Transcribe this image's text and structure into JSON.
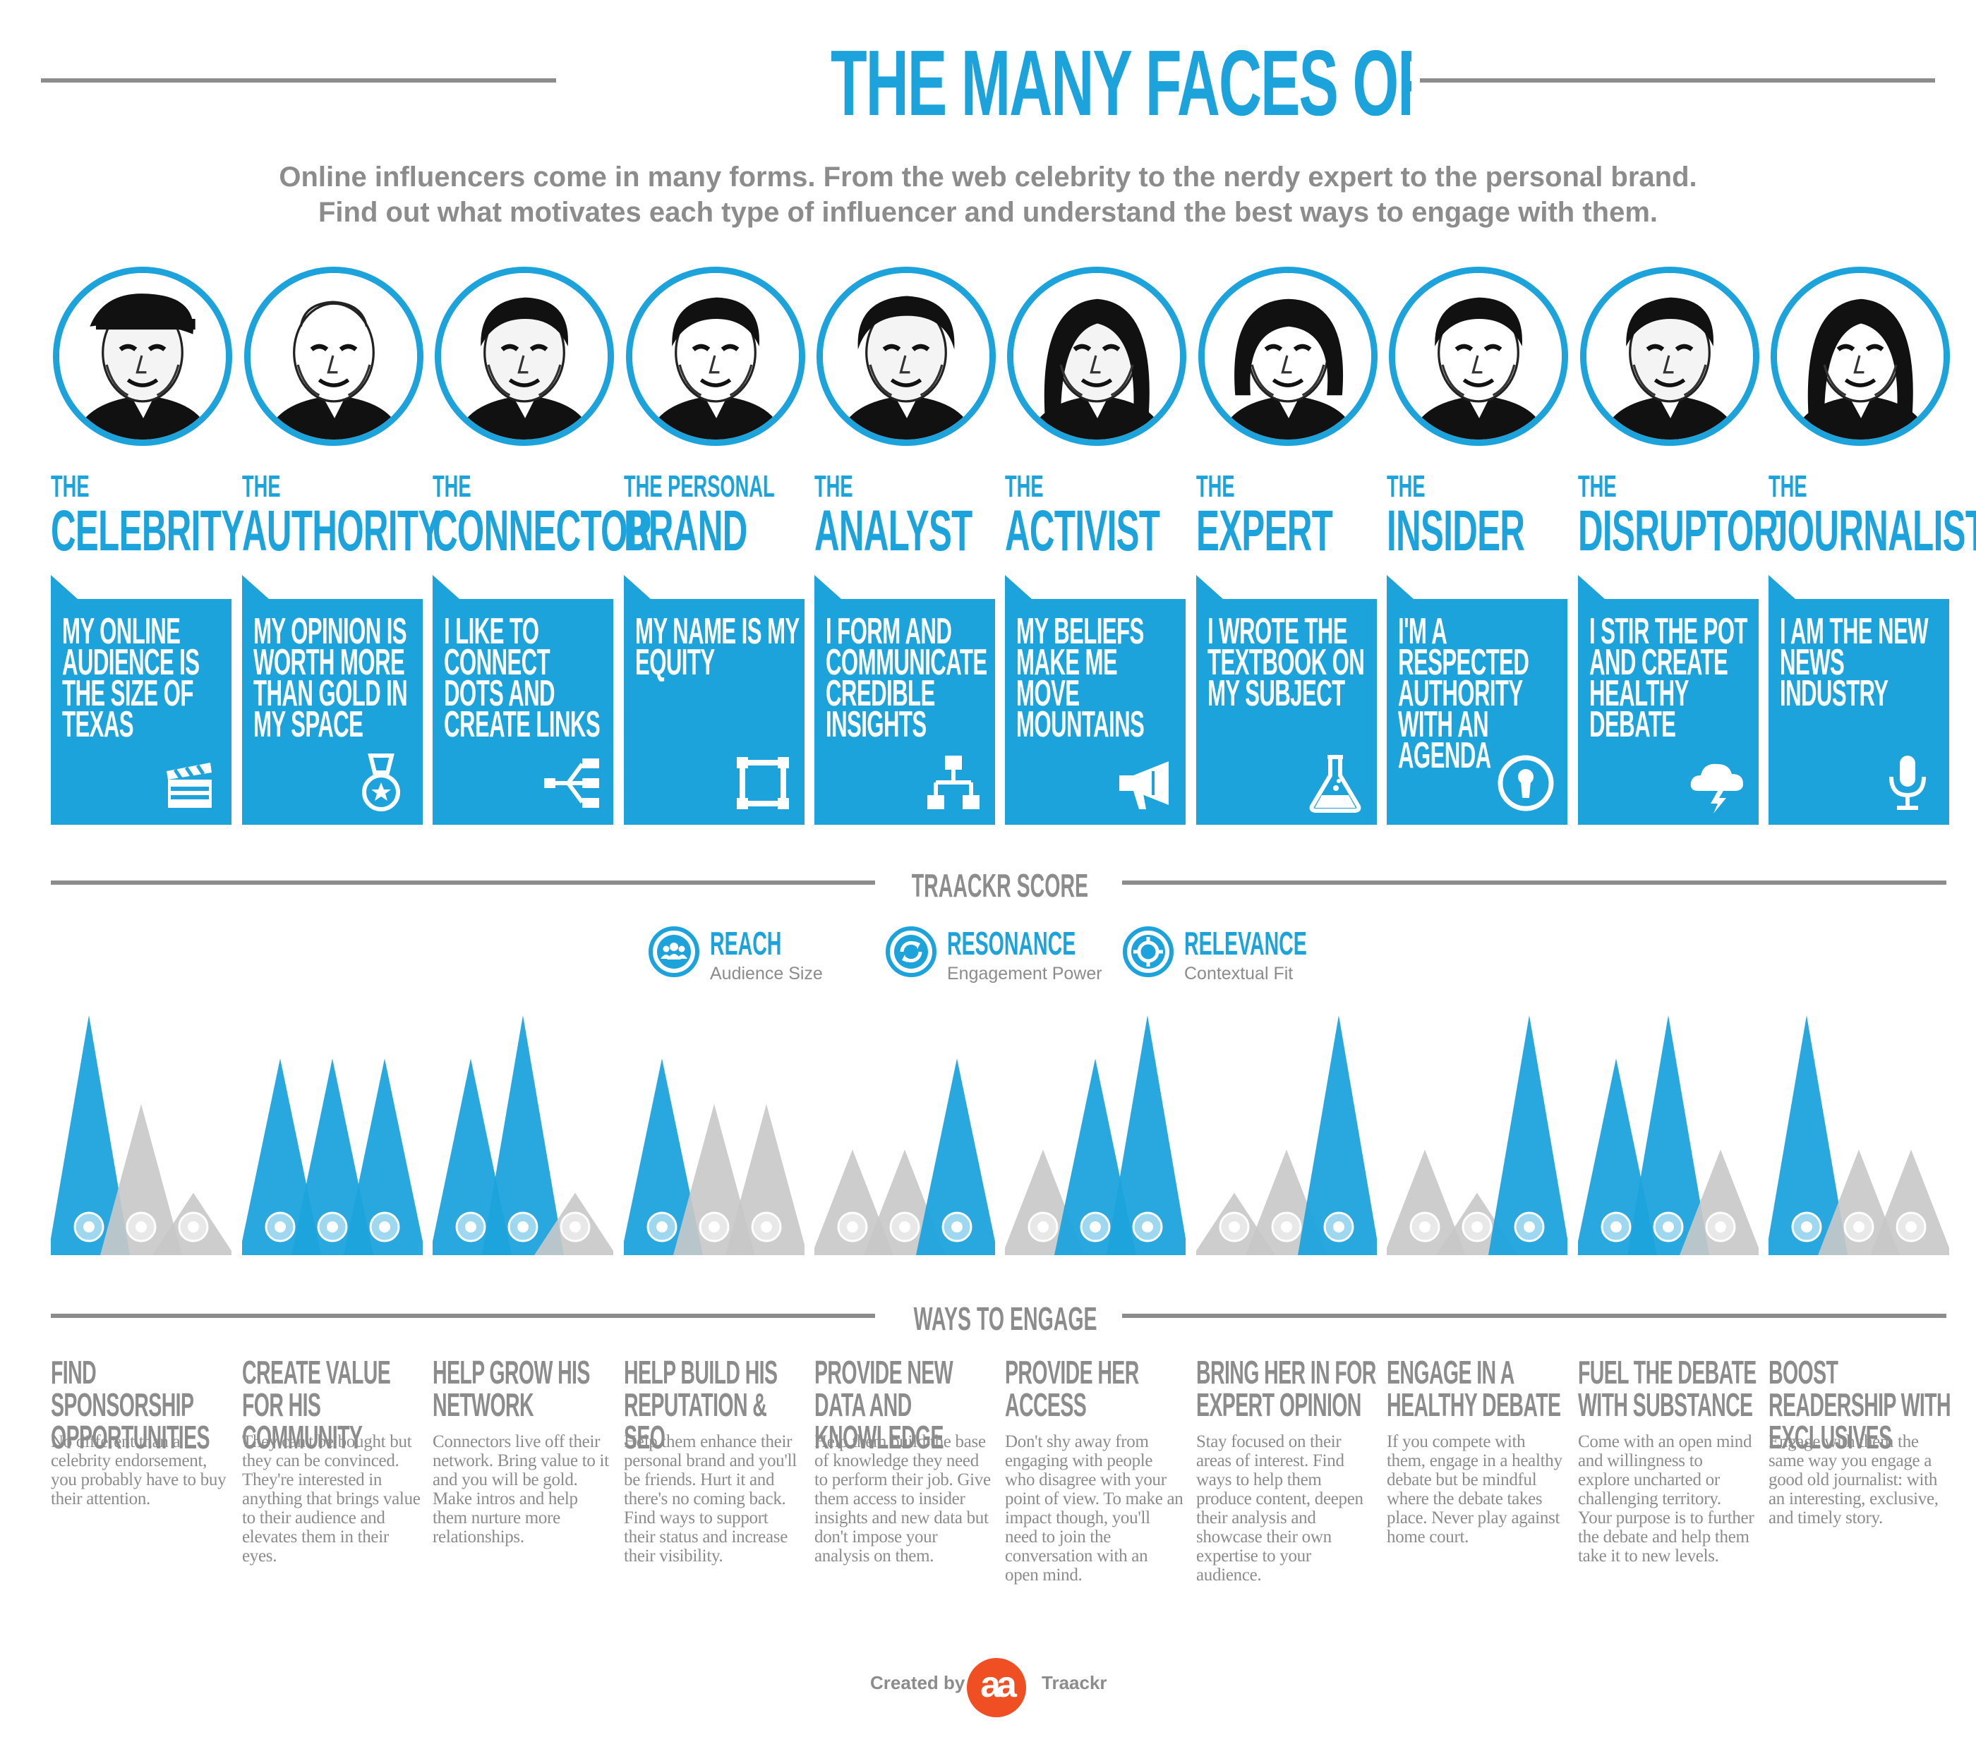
{
  "header": {
    "title": "THE MANY FACES OF INFLUENCE",
    "subtitle_line1": "Online influencers come in many forms. From the web celebrity to the nerdy expert to the personal brand.",
    "subtitle_line2": "Find out what motivates each type of influencer and understand the best ways to engage with them."
  },
  "sections": {
    "score": "TRAACKR SCORE",
    "engage": "WAYS TO ENGAGE"
  },
  "legend": [
    {
      "title": "REACH",
      "sub": "Audience Size",
      "icon": "audience-icon"
    },
    {
      "title": "RESONANCE",
      "sub": "Engagement Power",
      "icon": "cycle-arrows-icon"
    },
    {
      "title": "RELEVANCE",
      "sub": "Contextual Fit",
      "icon": "target-icon"
    }
  ],
  "colors": {
    "blue": "#1ca3dc",
    "grey": "#c8c8c8",
    "text_grey": "#8c8c8c",
    "logo": "#f04e23"
  },
  "influencers": [
    {
      "the": "THE",
      "name": "CELEBRITY",
      "quote": "MY ONLINE AUDIENCE IS THE SIZE OF TEXAS",
      "icon": "clapperboard-icon",
      "score": {
        "reach": 1.0,
        "resonance": 0.63,
        "relevance": 0.26
      },
      "engage_title": "FIND SPONSORSHIP OPPORTUNITIES",
      "engage_body": "No different than a celebrity endorsement, you probably have to buy their attention."
    },
    {
      "the": "THE",
      "name": "AUTHORITY",
      "quote": "MY OPINION IS WORTH MORE THAN GOLD IN MY SPACE",
      "icon": "medal-icon",
      "score": {
        "reach": 0.82,
        "resonance": 0.82,
        "relevance": 0.82
      },
      "engage_title": "CREATE VALUE FOR HIS COMMUNITY",
      "engage_body": "They can't be bought but they can be convinced. They're interested in anything that brings value to their audience and elevates them in their eyes."
    },
    {
      "the": "THE",
      "name": "CONNECTOR",
      "quote": "I LIKE TO CONNECT DOTS AND CREATE LINKS",
      "icon": "network-icon",
      "score": {
        "reach": 0.82,
        "resonance": 1.0,
        "relevance": 0.26
      },
      "engage_title": "HELP GROW HIS NETWORK",
      "engage_body": "Connectors live off their network. Bring value to it and you will be gold. Make intros and help them nurture more relationships."
    },
    {
      "the": "THE PERSONAL",
      "name": "BRAND",
      "quote": "MY NAME IS MY EQUITY",
      "icon": "frame-icon",
      "score": {
        "reach": 0.82,
        "resonance": 0.63,
        "relevance": 0.63
      },
      "engage_title": "HELP BUILD HIS REPUTATION & SEO",
      "engage_body": "Help them enhance their personal brand and you'll be friends. Hurt it and there's no coming back. Find ways to support their status and increase their visibility."
    },
    {
      "the": "THE",
      "name": "ANALYST",
      "quote": "I FORM AND COMMUNICATE CREDIBLE INSIGHTS",
      "icon": "flowchart-icon",
      "score": {
        "reach": 0.44,
        "resonance": 0.44,
        "relevance": 0.82
      },
      "engage_title": "PROVIDE NEW DATA AND KNOWLEDGE",
      "engage_body": "Help them build the base of knowledge they need to perform their job. Give them access to insider insights and new data but don't impose your analysis on them."
    },
    {
      "the": "THE",
      "name": "ACTIVIST",
      "quote": "MY BELIEFS MAKE ME MOVE MOUNTAINS",
      "icon": "megaphone-icon",
      "score": {
        "reach": 0.44,
        "resonance": 0.82,
        "relevance": 1.0
      },
      "engage_title": "PROVIDE HER ACCESS",
      "engage_body": "Don't shy away from engaging with people who disagree with your point of view. To make an impact though, you'll need to join the conversation with an open mind."
    },
    {
      "the": "THE",
      "name": "EXPERT",
      "quote": "I WROTE THE TEXTBOOK ON MY SUBJECT",
      "icon": "flask-icon",
      "score": {
        "reach": 0.26,
        "resonance": 0.44,
        "relevance": 1.0
      },
      "engage_title": "BRING HER IN FOR EXPERT OPINION",
      "engage_body": "Stay focused on their areas of interest. Find ways to help them produce content, deepen their analysis and showcase their own expertise to your audience."
    },
    {
      "the": "THE",
      "name": "INSIDER",
      "quote": "I'M A RESPECTED AUTHORITY WITH AN AGENDA",
      "icon": "keyhole-icon",
      "score": {
        "reach": 0.44,
        "resonance": 0.26,
        "relevance": 1.0
      },
      "engage_title": "ENGAGE IN A HEALTHY DEBATE",
      "engage_body": "If you compete with them, engage in a healthy debate but be mindful where the debate takes place. Never  play against home court."
    },
    {
      "the": "THE",
      "name": "DISRUPTOR",
      "quote": "I STIR THE POT AND CREATE HEALTHY DEBATE",
      "icon": "storm-cloud-icon",
      "score": {
        "reach": 0.82,
        "resonance": 1.0,
        "relevance": 0.44
      },
      "engage_title": "FUEL THE DEBATE WITH SUBSTANCE",
      "engage_body": "Come with an open mind and willingness to explore uncharted or challenging territory. Your purpose is to further the debate and help them take it to new levels."
    },
    {
      "the": "THE",
      "name": "JOURNALIST",
      "quote": "I AM THE NEW NEWS INDUSTRY",
      "icon": "microphone-icon",
      "score": {
        "reach": 1.0,
        "resonance": 0.44,
        "relevance": 0.44
      },
      "engage_title": "BOOST READERSHIP WITH EXCLUSIVES",
      "engage_body": "Engage with them the same way you engage a good old journalist: with an interesting, exclusive, and timely story."
    }
  ],
  "footer": {
    "created_by": "Created by",
    "logo": "aa",
    "brand": "Traackr"
  }
}
